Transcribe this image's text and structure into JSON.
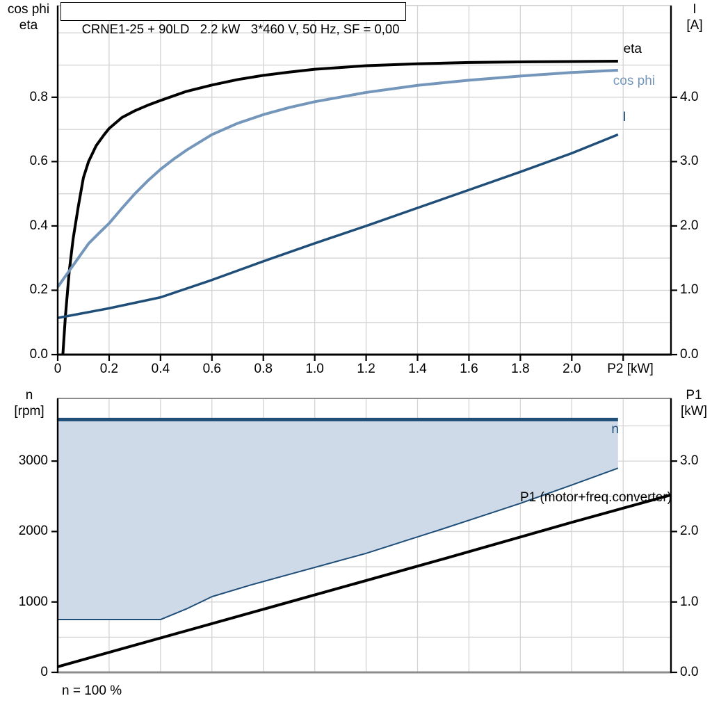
{
  "title_box": "CRNE1-25 + 90LD   2.2 kW   3*460 V, 50 Hz, SF = 0,00",
  "footer": {
    "text": "n = 100 %"
  },
  "colors": {
    "navy": "#1f4e79",
    "steel_blue": "#7496ba",
    "black": "#000000",
    "fill_blue": "#cfdae8",
    "grid": "#d3d3d3",
    "frame_gray": "#8c8c8c"
  },
  "chart_data": [
    {
      "id": "top-power-chart",
      "type": "line",
      "title": "CRNE1-25 + 90LD   2.2 kW   3*460 V, 50 Hz, SF = 0,00",
      "xlabel": "P2 [kW]",
      "ylabel_left": [
        "cos phi",
        "eta"
      ],
      "ylabel_right": [
        "I",
        "[A]"
      ],
      "x_range": [
        0,
        2.386
      ],
      "y_left_range": [
        0,
        1.085
      ],
      "y_right_range": [
        0,
        5.425
      ],
      "grid": {
        "color": "#d3d3d3",
        "x_min": 0.2,
        "x_max": 2.2,
        "x_step": 0.2,
        "y_min": 0.1,
        "y_max": 1.0,
        "y_step": 0.1
      },
      "x_ticks": [
        {
          "v": 0,
          "label": "0"
        },
        {
          "v": 0.2,
          "label": "0.2"
        },
        {
          "v": 0.4,
          "label": "0.4"
        },
        {
          "v": 0.6,
          "label": "0.6"
        },
        {
          "v": 0.8,
          "label": "0.8"
        },
        {
          "v": 1.0,
          "label": "1.0"
        },
        {
          "v": 1.2,
          "label": "1.2"
        },
        {
          "v": 1.4,
          "label": "1.4"
        },
        {
          "v": 1.6,
          "label": "1.6"
        },
        {
          "v": 1.8,
          "label": "1.8"
        },
        {
          "v": 2.0,
          "label": "2.0"
        },
        {
          "v": 2.2,
          "axis_label": true
        }
      ],
      "y_ticks_left": [
        {
          "v": 0.0,
          "label": "0.0"
        },
        {
          "v": 0.2,
          "label": "0.2"
        },
        {
          "v": 0.4,
          "label": "0.4"
        },
        {
          "v": 0.6,
          "label": "0.6"
        },
        {
          "v": 0.8,
          "label": "0.8"
        }
      ],
      "y_ticks_right": [
        {
          "v": 0.0,
          "label": "0.0"
        },
        {
          "v": 1.0,
          "label": "1.0"
        },
        {
          "v": 2.0,
          "label": "2.0"
        },
        {
          "v": 3.0,
          "label": "3.0"
        },
        {
          "v": 4.0,
          "label": "4.0"
        }
      ],
      "series": [
        {
          "id": "eta",
          "label": "eta",
          "axis": "left",
          "color": "#000000",
          "width": 4,
          "points": [
            [
              0.02,
              0
            ],
            [
              0.03,
              0.12
            ],
            [
              0.045,
              0.26
            ],
            [
              0.06,
              0.36
            ],
            [
              0.08,
              0.46
            ],
            [
              0.1,
              0.55
            ],
            [
              0.12,
              0.6
            ],
            [
              0.15,
              0.65
            ],
            [
              0.18,
              0.683
            ],
            [
              0.2,
              0.703
            ],
            [
              0.25,
              0.737
            ],
            [
              0.3,
              0.758
            ],
            [
              0.35,
              0.775
            ],
            [
              0.4,
              0.79
            ],
            [
              0.5,
              0.818
            ],
            [
              0.6,
              0.838
            ],
            [
              0.7,
              0.855
            ],
            [
              0.8,
              0.868
            ],
            [
              0.9,
              0.878
            ],
            [
              1.0,
              0.887
            ],
            [
              1.2,
              0.898
            ],
            [
              1.4,
              0.904
            ],
            [
              1.6,
              0.908
            ],
            [
              1.8,
              0.91
            ],
            [
              2.0,
              0.911
            ],
            [
              2.18,
              0.912
            ]
          ]
        },
        {
          "id": "cos_phi",
          "label": "cos phi",
          "axis": "left",
          "color": "#7496ba",
          "width": 4,
          "points": [
            [
              0,
              0.21
            ],
            [
              0.04,
              0.255
            ],
            [
              0.08,
              0.3
            ],
            [
              0.12,
              0.345
            ],
            [
              0.16,
              0.377
            ],
            [
              0.2,
              0.408
            ],
            [
              0.25,
              0.455
            ],
            [
              0.3,
              0.5
            ],
            [
              0.35,
              0.54
            ],
            [
              0.4,
              0.576
            ],
            [
              0.45,
              0.607
            ],
            [
              0.5,
              0.635
            ],
            [
              0.6,
              0.684
            ],
            [
              0.7,
              0.719
            ],
            [
              0.8,
              0.746
            ],
            [
              0.9,
              0.768
            ],
            [
              1.0,
              0.786
            ],
            [
              1.2,
              0.815
            ],
            [
              1.4,
              0.837
            ],
            [
              1.6,
              0.853
            ],
            [
              1.8,
              0.866
            ],
            [
              2.0,
              0.877
            ],
            [
              2.18,
              0.884
            ]
          ]
        },
        {
          "id": "I",
          "label": "I",
          "axis": "right",
          "color": "#1f4e79",
          "width": 3.5,
          "points": [
            [
              0,
              0.57
            ],
            [
              0.2,
              0.72
            ],
            [
              0.4,
              0.89
            ],
            [
              0.6,
              1.16
            ],
            [
              0.8,
              1.45
            ],
            [
              1.0,
              1.73
            ],
            [
              1.2,
              2.0
            ],
            [
              1.4,
              2.28
            ],
            [
              1.6,
              2.56
            ],
            [
              1.8,
              2.84
            ],
            [
              2.0,
              3.13
            ],
            [
              2.18,
              3.42
            ]
          ]
        }
      ]
    },
    {
      "id": "bottom-speed-chart",
      "type": "line",
      "xlabel": "",
      "ylabel_left": [
        "n",
        "[rpm]"
      ],
      "ylabel_right": [
        "P1",
        "[kW]"
      ],
      "x_range": [
        0,
        2.386
      ],
      "y_left_range": [
        0,
        3890
      ],
      "y_right_range": [
        0,
        3.89
      ],
      "grid": {
        "color": "#d3d3d3",
        "x_min": 0.2,
        "x_max": 2.2,
        "x_step": 0.2,
        "y_min": 500,
        "y_max": 3500,
        "y_step": 500
      },
      "x_ticks": [],
      "y_ticks_left": [
        {
          "v": 0,
          "label": "0"
        },
        {
          "v": 1000,
          "label": "1000"
        },
        {
          "v": 2000,
          "label": "2000"
        },
        {
          "v": 3000,
          "label": "3000"
        }
      ],
      "y_ticks_right": [
        {
          "v": 0.0,
          "label": "0.0"
        },
        {
          "v": 1.0,
          "label": "1.0"
        },
        {
          "v": 2.0,
          "label": "2.0"
        },
        {
          "v": 3.0,
          "label": "3.0"
        }
      ],
      "fill_between": {
        "upper": "n",
        "lower": "n_min",
        "color": "#cfdae8"
      },
      "series": [
        {
          "id": "n",
          "label": "n",
          "axis": "left",
          "color": "#1f4e79",
          "width": 5,
          "points": [
            [
              0,
              3590
            ],
            [
              2.18,
              3590
            ]
          ]
        },
        {
          "id": "n_min",
          "label": null,
          "axis": "left",
          "color": "#1f4e79",
          "width": 2,
          "points": [
            [
              0,
              750
            ],
            [
              0.4,
              750
            ],
            [
              0.5,
              900
            ],
            [
              0.6,
              1075
            ],
            [
              0.75,
              1240
            ],
            [
              0.9,
              1390
            ],
            [
              1.05,
              1540
            ],
            [
              1.2,
              1690
            ],
            [
              1.35,
              1865
            ],
            [
              1.5,
              2040
            ],
            [
              1.65,
              2220
            ],
            [
              1.8,
              2400
            ],
            [
              2.0,
              2660
            ],
            [
              2.18,
              2900
            ]
          ]
        },
        {
          "id": "P1",
          "label": "P1 (motor+freq.converter)",
          "axis": "right",
          "color": "#000000",
          "width": 4,
          "points": [
            [
              0,
              0.08
            ],
            [
              0.5,
              0.59
            ],
            [
              1.0,
              1.1
            ],
            [
              1.5,
              1.61
            ],
            [
              2.0,
              2.13
            ],
            [
              2.386,
              2.52
            ]
          ]
        }
      ],
      "annotation": "n = 100 %"
    }
  ]
}
